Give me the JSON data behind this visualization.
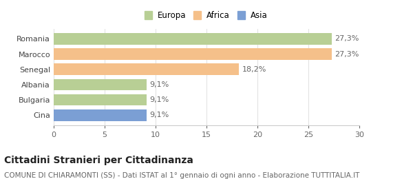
{
  "categories": [
    "Cina",
    "Bulgaria",
    "Albania",
    "Senegal",
    "Marocco",
    "Romania"
  ],
  "values": [
    9.1,
    9.1,
    9.1,
    18.2,
    27.3,
    27.3
  ],
  "bar_colors": [
    "#7b9fd4",
    "#b8cf95",
    "#b8cf95",
    "#f5c08a",
    "#f5c08a",
    "#b8cf95"
  ],
  "labels": [
    "9,1%",
    "9,1%",
    "9,1%",
    "18,2%",
    "27,3%",
    "27,3%"
  ],
  "xlim": [
    0,
    30
  ],
  "xticks": [
    0,
    5,
    10,
    15,
    20,
    25,
    30
  ],
  "legend_items": [
    {
      "label": "Europa",
      "color": "#b8cf95"
    },
    {
      "label": "Africa",
      "color": "#f5c08a"
    },
    {
      "label": "Asia",
      "color": "#7b9fd4"
    }
  ],
  "title": "Cittadini Stranieri per Cittadinanza",
  "subtitle": "COMUNE DI CHIARAMONTI (SS) - Dati ISTAT al 1° gennaio di ogni anno - Elaborazione TUTTITALIA.IT",
  "bar_height": 0.75,
  "background_color": "#ffffff",
  "label_fontsize": 8,
  "tick_fontsize": 8,
  "title_fontsize": 10,
  "subtitle_fontsize": 7.5
}
